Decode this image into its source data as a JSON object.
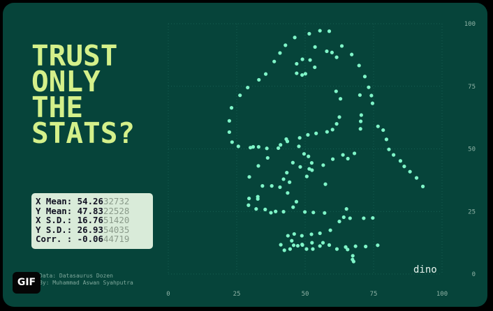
{
  "headline": [
    "TRUST",
    "ONLY",
    "THE",
    "STATS?"
  ],
  "stats": [
    {
      "label": "X Mean:",
      "value": " 54.26",
      "tail": "32732"
    },
    {
      "label": "Y Mean:",
      "value": " 47.83",
      "tail": "22528"
    },
    {
      "label": "X S.D.:",
      "value": " 16.76",
      "tail": "51420"
    },
    {
      "label": "Y S.D.:",
      "value": " 26.93",
      "tail": "54035"
    },
    {
      "label": "Corr. :",
      "value": " -0.06",
      "tail": "44719"
    }
  ],
  "credits": [
    "Data: Datasaurus Dozen",
    "By: Muhammad Aswan Syahputra"
  ],
  "badge": "GIF",
  "colors": {
    "background": "#06443a",
    "headline": "#d4f08a",
    "points": "#7ff5c8",
    "grid": "#1d6a5c"
  },
  "chart_data": {
    "type": "scatter",
    "series": [
      {
        "name": "dino",
        "points": [
          [
            55.4,
            97.2
          ],
          [
            51.5,
            96.0
          ],
          [
            46.2,
            94.5
          ],
          [
            42.8,
            91.4
          ],
          [
            40.8,
            88.3
          ],
          [
            38.7,
            84.9
          ],
          [
            35.6,
            79.9
          ],
          [
            33.1,
            77.6
          ],
          [
            29.0,
            74.5
          ],
          [
            26.2,
            71.4
          ],
          [
            23.1,
            66.4
          ],
          [
            22.3,
            61.2
          ],
          [
            22.3,
            56.7
          ],
          [
            23.3,
            52.7
          ],
          [
            25.6,
            51.0
          ],
          [
            30.0,
            50.5
          ],
          [
            31.0,
            50.8
          ],
          [
            33.0,
            50.8
          ],
          [
            36.0,
            50.2
          ],
          [
            41.0,
            51.6
          ],
          [
            43.5,
            53.0
          ],
          [
            48.0,
            54.4
          ],
          [
            51.0,
            55.6
          ],
          [
            54.0,
            56.2
          ],
          [
            58.0,
            56.8
          ],
          [
            60.0,
            57.7
          ],
          [
            61.5,
            60.0
          ],
          [
            62.5,
            62.7
          ],
          [
            62.9,
            70.0
          ],
          [
            61.3,
            73.0
          ],
          [
            61.5,
            86.6
          ],
          [
            59.8,
            88.5
          ],
          [
            57.9,
            89.0
          ],
          [
            53.5,
            82.6
          ],
          [
            51.8,
            85.5
          ],
          [
            49.0,
            85.8
          ],
          [
            46.9,
            84.0
          ],
          [
            46.9,
            80.2
          ],
          [
            48.9,
            79.5
          ],
          [
            50.1,
            80.0
          ],
          [
            53.6,
            90.7
          ],
          [
            58.8,
            97.0
          ],
          [
            63.4,
            91.1
          ],
          [
            67.0,
            87.7
          ],
          [
            69.7,
            83.3
          ],
          [
            71.8,
            78.9
          ],
          [
            73.2,
            74.6
          ],
          [
            74.2,
            71.3
          ],
          [
            74.6,
            68.2
          ],
          [
            70.0,
            71.5
          ],
          [
            70.5,
            63.5
          ],
          [
            70.3,
            61.0
          ],
          [
            70.2,
            58.0
          ],
          [
            76.6,
            59.0
          ],
          [
            78.5,
            57.5
          ],
          [
            79.7,
            53.8
          ],
          [
            80.6,
            49.8
          ],
          [
            82.3,
            47.6
          ],
          [
            84.8,
            45.2
          ],
          [
            86.2,
            43.0
          ],
          [
            88.3,
            40.9
          ],
          [
            90.7,
            38.4
          ],
          [
            93.0,
            35.0
          ],
          [
            29.6,
            38.8
          ],
          [
            32.9,
            43.2
          ],
          [
            36.3,
            46.4
          ],
          [
            40.2,
            50.3
          ],
          [
            43.1,
            53.9
          ],
          [
            47.7,
            51.0
          ],
          [
            49.6,
            48.0
          ],
          [
            51.2,
            47.0
          ],
          [
            52.4,
            44.4
          ],
          [
            51.5,
            42.0
          ],
          [
            48.2,
            42.8
          ],
          [
            45.5,
            44.5
          ],
          [
            43.3,
            40.5
          ],
          [
            42.1,
            37.9
          ],
          [
            44.3,
            36.7
          ],
          [
            50.6,
            39.0
          ],
          [
            52.5,
            41.5
          ],
          [
            56.6,
            43.5
          ],
          [
            60.1,
            45.9
          ],
          [
            65.6,
            46.1
          ],
          [
            63.8,
            47.6
          ],
          [
            68.0,
            48.2
          ],
          [
            46.8,
            28.9
          ],
          [
            43.6,
            32.4
          ],
          [
            40.8,
            34.7
          ],
          [
            37.8,
            35.2
          ],
          [
            34.4,
            35.2
          ],
          [
            32.7,
            30.9
          ],
          [
            29.5,
            30.2
          ],
          [
            29.3,
            27.5
          ],
          [
            32.1,
            26.0
          ],
          [
            35.4,
            25.8
          ],
          [
            39.2,
            25.0
          ],
          [
            42.1,
            24.9
          ],
          [
            45.6,
            26.7
          ],
          [
            49.9,
            24.8
          ],
          [
            53.0,
            24.6
          ],
          [
            57.1,
            24.4
          ],
          [
            62.5,
            21.0
          ],
          [
            64.1,
            22.7
          ],
          [
            66.4,
            22.3
          ],
          [
            71.4,
            22.3
          ],
          [
            74.7,
            22.4
          ],
          [
            65.1,
            26.0
          ],
          [
            57.4,
            35.9
          ],
          [
            37.5,
            24.5
          ],
          [
            32.7,
            30.0
          ],
          [
            46.0,
            16.0
          ],
          [
            48.8,
            15.3
          ],
          [
            52.3,
            15.9
          ],
          [
            55.4,
            16.3
          ],
          [
            59.2,
            17.5
          ],
          [
            56.5,
            12.5
          ],
          [
            52.5,
            12.5
          ],
          [
            49.0,
            11.6
          ],
          [
            45.1,
            13.3
          ],
          [
            43.7,
            15.3
          ],
          [
            41.1,
            11.7
          ],
          [
            42.4,
            9.5
          ],
          [
            44.5,
            10.0
          ],
          [
            45.8,
            11.5
          ],
          [
            47.3,
            11.3
          ],
          [
            48.9,
            11.8
          ],
          [
            50.5,
            10.0
          ],
          [
            52.8,
            10.0
          ],
          [
            55.4,
            11.2
          ],
          [
            58.8,
            11.6
          ],
          [
            61.6,
            10.0
          ],
          [
            64.8,
            10.8
          ],
          [
            68.4,
            11.1
          ],
          [
            72.1,
            11.0
          ],
          [
            76.5,
            11.5
          ],
          [
            65.5,
            9.8
          ],
          [
            67.4,
            7.3
          ],
          [
            67.3,
            5.8
          ],
          [
            67.7,
            5.0
          ]
        ]
      }
    ],
    "x_ticks": [
      "0",
      "25",
      "50",
      "75",
      "100"
    ],
    "y_ticks": [
      "0",
      "25",
      "50",
      "75",
      "100"
    ],
    "xlim": [
      0,
      100
    ],
    "ylim": [
      0,
      100
    ],
    "grid": true,
    "annotation": "dino"
  }
}
